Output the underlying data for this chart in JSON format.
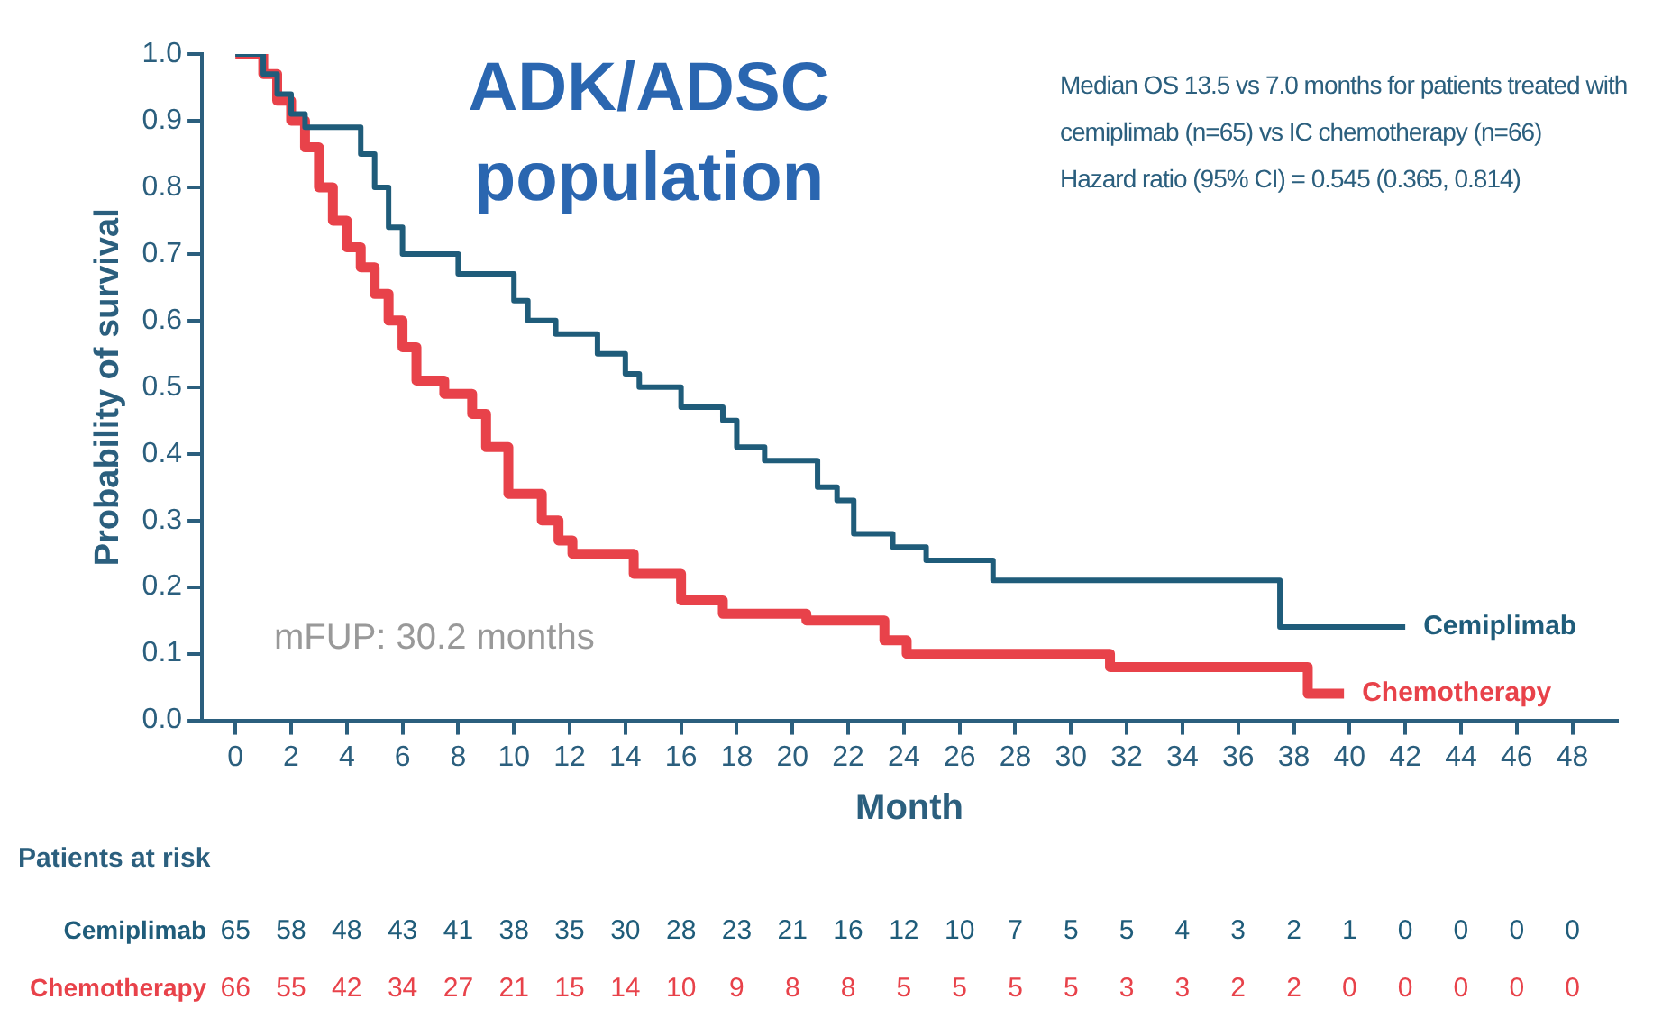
{
  "chart_data": {
    "type": "step",
    "title": "ADK/ADSC population",
    "xlabel": "Month",
    "ylabel": "Probability of survival",
    "annotations": [
      "Median OS 13.5 vs 7.0 months for patients treated with cemiplimab (n=65) vs IC chemotherapy (n=66)",
      "Hazard ratio (95% CI) = 0.545 (0.365, 0.814)",
      "mFUP: 30.2 months",
      "Patients at risk",
      "Cemiplimab 65 58 48 43 41 38 35 30 28 23 21 16 12 10 7 5 5 4 3 2 1 0 0 0 0",
      "Chemotherapy 66 55 42 34 27 21 15 14 10 9 8 8 5 5 5 5 3 3 2 2 0 0 0 0 0"
    ],
    "series": [
      {
        "name": "Cemiplimab",
        "color": "#1f5c7a",
        "x": [
          0,
          1,
          1.5,
          2,
          2.5,
          4.5,
          5,
          5.5,
          6,
          8,
          10,
          10.5,
          11.5,
          13,
          14,
          14.5,
          16,
          17.5,
          18,
          19,
          20.9,
          21.6,
          22.2,
          23.6,
          24.8,
          27.2,
          37.5,
          42
        ],
        "values": [
          1.0,
          0.97,
          0.94,
          0.91,
          0.89,
          0.85,
          0.8,
          0.74,
          0.7,
          0.67,
          0.63,
          0.6,
          0.58,
          0.55,
          0.52,
          0.5,
          0.47,
          0.45,
          0.41,
          0.39,
          0.35,
          0.33,
          0.28,
          0.26,
          0.24,
          0.21,
          0.14,
          0.14
        ]
      },
      {
        "name": "Chemotherapy",
        "color": "#e8424a",
        "x": [
          0,
          1,
          1.5,
          2,
          2.5,
          3,
          3.5,
          4,
          4.5,
          5,
          5.5,
          6,
          6.5,
          7.5,
          8.5,
          9,
          9.8,
          11,
          11.6,
          12.1,
          14.3,
          16,
          17.5,
          20.5,
          23.3,
          24.1,
          31.4,
          38.5,
          39.8
        ],
        "values": [
          1.0,
          0.97,
          0.93,
          0.9,
          0.86,
          0.8,
          0.75,
          0.71,
          0.68,
          0.64,
          0.6,
          0.56,
          0.51,
          0.49,
          0.46,
          0.41,
          0.34,
          0.3,
          0.27,
          0.25,
          0.22,
          0.18,
          0.16,
          0.15,
          0.12,
          0.1,
          0.08,
          0.04,
          0.04
        ]
      }
    ],
    "xlim": [
      -1.2,
      49.6
    ],
    "xticks": [
      0,
      2,
      4,
      6,
      8,
      10,
      12,
      14,
      16,
      18,
      20,
      22,
      24,
      26,
      28,
      30,
      32,
      34,
      36,
      38,
      40,
      42,
      44,
      46,
      48
    ],
    "ylim": [
      0,
      1.0
    ],
    "yticks": [
      {
        "value": 0,
        "label": "0.0"
      },
      {
        "value": 0.1,
        "label": "0.1"
      },
      {
        "value": 0.2,
        "label": "0.2"
      },
      {
        "value": 0.3,
        "label": "0.3"
      },
      {
        "value": 0.4,
        "label": "0.4"
      },
      {
        "value": 0.5,
        "label": "0.5"
      },
      {
        "value": 0.6,
        "label": "0.6"
      },
      {
        "value": 0.7,
        "label": "0.7"
      },
      {
        "value": 0.8,
        "label": "0.8"
      },
      {
        "value": 0.9,
        "label": "0.9"
      },
      {
        "value": 1.0,
        "label": "1.0"
      }
    ],
    "grid": false,
    "legend": false,
    "marker": "none",
    "line_style": "solid"
  }
}
